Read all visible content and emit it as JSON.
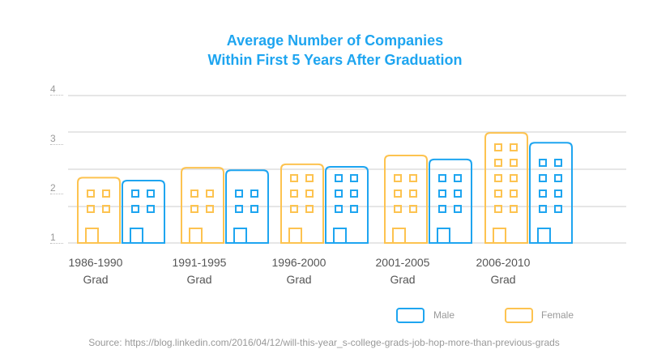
{
  "chart_data": {
    "type": "bar",
    "title": "Average Number of Companies\nWithin First 5 Years After Graduation",
    "title_lines": [
      "Average Number of Companies",
      "Within First 5 Years After Graduation"
    ],
    "categories": [
      "1986-1990 Grad",
      "1991-1995 Grad",
      "1996-2000 Grad",
      "2001-2005 Grad",
      "2006-2010 Grad"
    ],
    "category_lines": [
      [
        "1986-1990",
        "Grad"
      ],
      [
        "1991-1995",
        "Grad"
      ],
      [
        "1996-2000",
        "Grad"
      ],
      [
        "2001-2005",
        "Grad"
      ],
      [
        "2006-2010",
        "Grad"
      ]
    ],
    "series": [
      {
        "name": "Female",
        "color": "#fdc350",
        "values": [
          2.33,
          2.53,
          2.6,
          2.78,
          3.24
        ]
      },
      {
        "name": "Male",
        "color": "#1ea5f0",
        "values": [
          2.27,
          2.48,
          2.55,
          2.7,
          3.04
        ]
      }
    ],
    "yticks": [
      "4",
      "3",
      "2",
      "1"
    ],
    "ylim": [
      1,
      4
    ],
    "grid": true,
    "legend_position": "bottom-right",
    "mark_style": "building icons",
    "source": "Source: https://blog.linkedin.com/2016/04/12/will-this-year_s-college-grads-job-hop-more-than-previous-grads"
  }
}
